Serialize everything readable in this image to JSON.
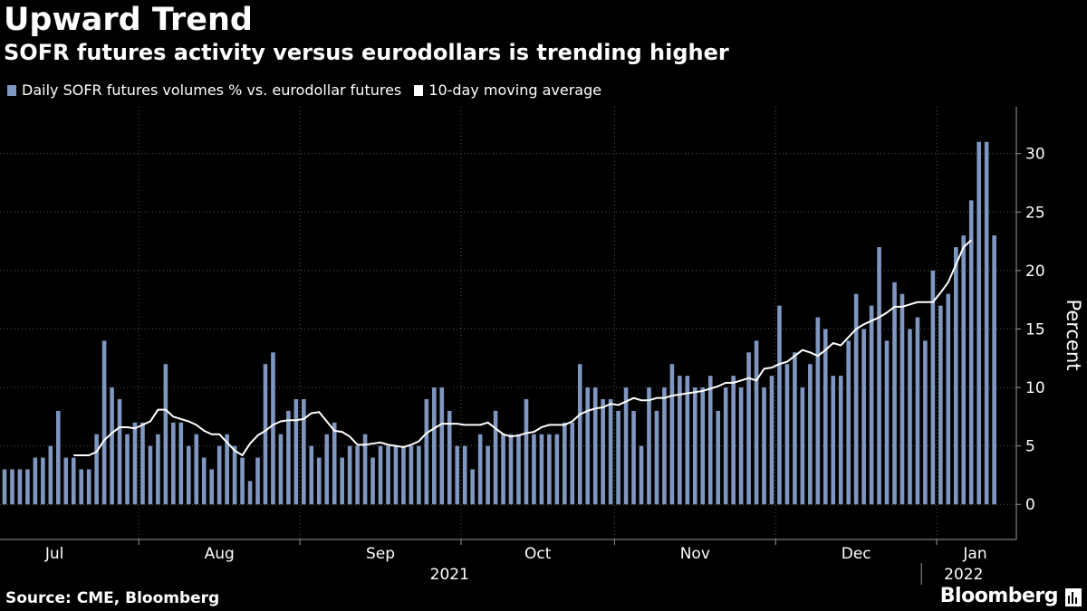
{
  "header": {
    "title": "Upward Trend",
    "subtitle": "SOFR futures activity versus eurodollars is trending higher"
  },
  "footer": {
    "source": "Source: CME, Bloomberg",
    "brand": "Bloomberg"
  },
  "colors": {
    "background": "#000000",
    "bar": "#7f97c0",
    "line": "#ffffff",
    "axis": "#9a9a9a",
    "gridline": "#555555",
    "text": "#ffffff"
  },
  "chart_data": {
    "type": "bar",
    "title": "Upward Trend",
    "subtitle": "SOFR futures activity versus eurodollars is trending higher",
    "ylabel": "Percent",
    "xlabel": "",
    "ylim": [
      -3,
      34
    ],
    "yticks": [
      0,
      5,
      10,
      15,
      20,
      25,
      30
    ],
    "grid": true,
    "legend_position": "top-left",
    "months": [
      "Jul",
      "Aug",
      "Sep",
      "Oct",
      "Nov",
      "Dec",
      "Jan"
    ],
    "month_start_index": [
      -4,
      18,
      39,
      60,
      80,
      101,
      122
    ],
    "years": [
      {
        "label": "2021",
        "center_index": 58
      },
      {
        "label": "2022",
        "center_index": 125
      }
    ],
    "year_divider_index": 119.5,
    "series": [
      {
        "name": "Daily SOFR futures volumes % vs. eurodollar futures",
        "kind": "bar",
        "values": [
          3,
          3,
          3,
          3,
          4,
          4,
          5,
          8,
          4,
          4,
          3,
          3,
          6,
          14,
          10,
          9,
          6,
          7,
          7,
          5,
          6,
          12,
          7,
          7,
          5,
          6,
          4,
          3,
          5,
          6,
          5,
          4,
          2,
          4,
          12,
          13,
          6,
          8,
          9,
          9,
          5,
          4,
          6,
          7,
          4,
          5,
          5,
          6,
          4,
          5,
          5,
          5,
          5,
          5,
          5,
          9,
          10,
          10,
          8,
          5,
          5,
          3,
          6,
          5,
          8,
          6,
          6,
          6,
          9,
          6,
          6,
          6,
          6,
          7,
          7,
          12,
          10,
          10,
          9,
          9,
          8,
          10,
          8,
          5,
          10,
          8,
          10,
          12,
          11,
          11,
          10,
          10,
          11,
          8,
          10,
          11,
          10,
          13,
          14,
          10,
          11,
          17,
          12,
          13,
          10,
          12,
          16,
          15,
          11,
          11,
          14,
          18,
          15,
          17,
          22,
          14,
          19,
          18,
          15,
          16,
          14,
          20,
          17,
          18,
          22,
          23,
          26,
          31,
          31,
          23
        ]
      },
      {
        "name": "10-day moving average",
        "kind": "line",
        "start_index": 9,
        "values": [
          4.2,
          4.2,
          4.2,
          4.5,
          5.5,
          6.1,
          6.6,
          6.6,
          6.5,
          6.8,
          7.1,
          8.1,
          8.1,
          7.5,
          7.3,
          7.1,
          6.8,
          6.3,
          6.0,
          6.0,
          5.3,
          4.6,
          4.2,
          5.2,
          5.9,
          6.3,
          6.8,
          7.1,
          7.2,
          7.2,
          7.3,
          7.8,
          7.9,
          7.1,
          6.3,
          6.2,
          5.8,
          5.1,
          5.1,
          5.2,
          5.3,
          5.1,
          5.0,
          4.9,
          5.1,
          5.4,
          6.1,
          6.5,
          6.9,
          6.9,
          6.9,
          6.8,
          6.8,
          6.8,
          7.0,
          6.5,
          6.0,
          5.8,
          5.9,
          6.1,
          6.2,
          6.6,
          6.8,
          6.8,
          6.8,
          7.1,
          7.7,
          8.0,
          8.2,
          8.3,
          8.6,
          8.5,
          8.8,
          9.1,
          8.9,
          8.9,
          9.1,
          9.1,
          9.3,
          9.4,
          9.5,
          9.6,
          9.7,
          9.9,
          10.1,
          10.4,
          10.4,
          10.6,
          10.8,
          10.6,
          11.6,
          11.7,
          12.0,
          12.2,
          12.7,
          13.2,
          13.0,
          12.7,
          13.2,
          13.8,
          13.6,
          14.3,
          15.0,
          15.4,
          15.7,
          16.0,
          16.4,
          16.9,
          16.9,
          17.1,
          17.3,
          17.3,
          17.3,
          18.1,
          19.0,
          20.5,
          22.0,
          22.6
        ]
      }
    ]
  }
}
